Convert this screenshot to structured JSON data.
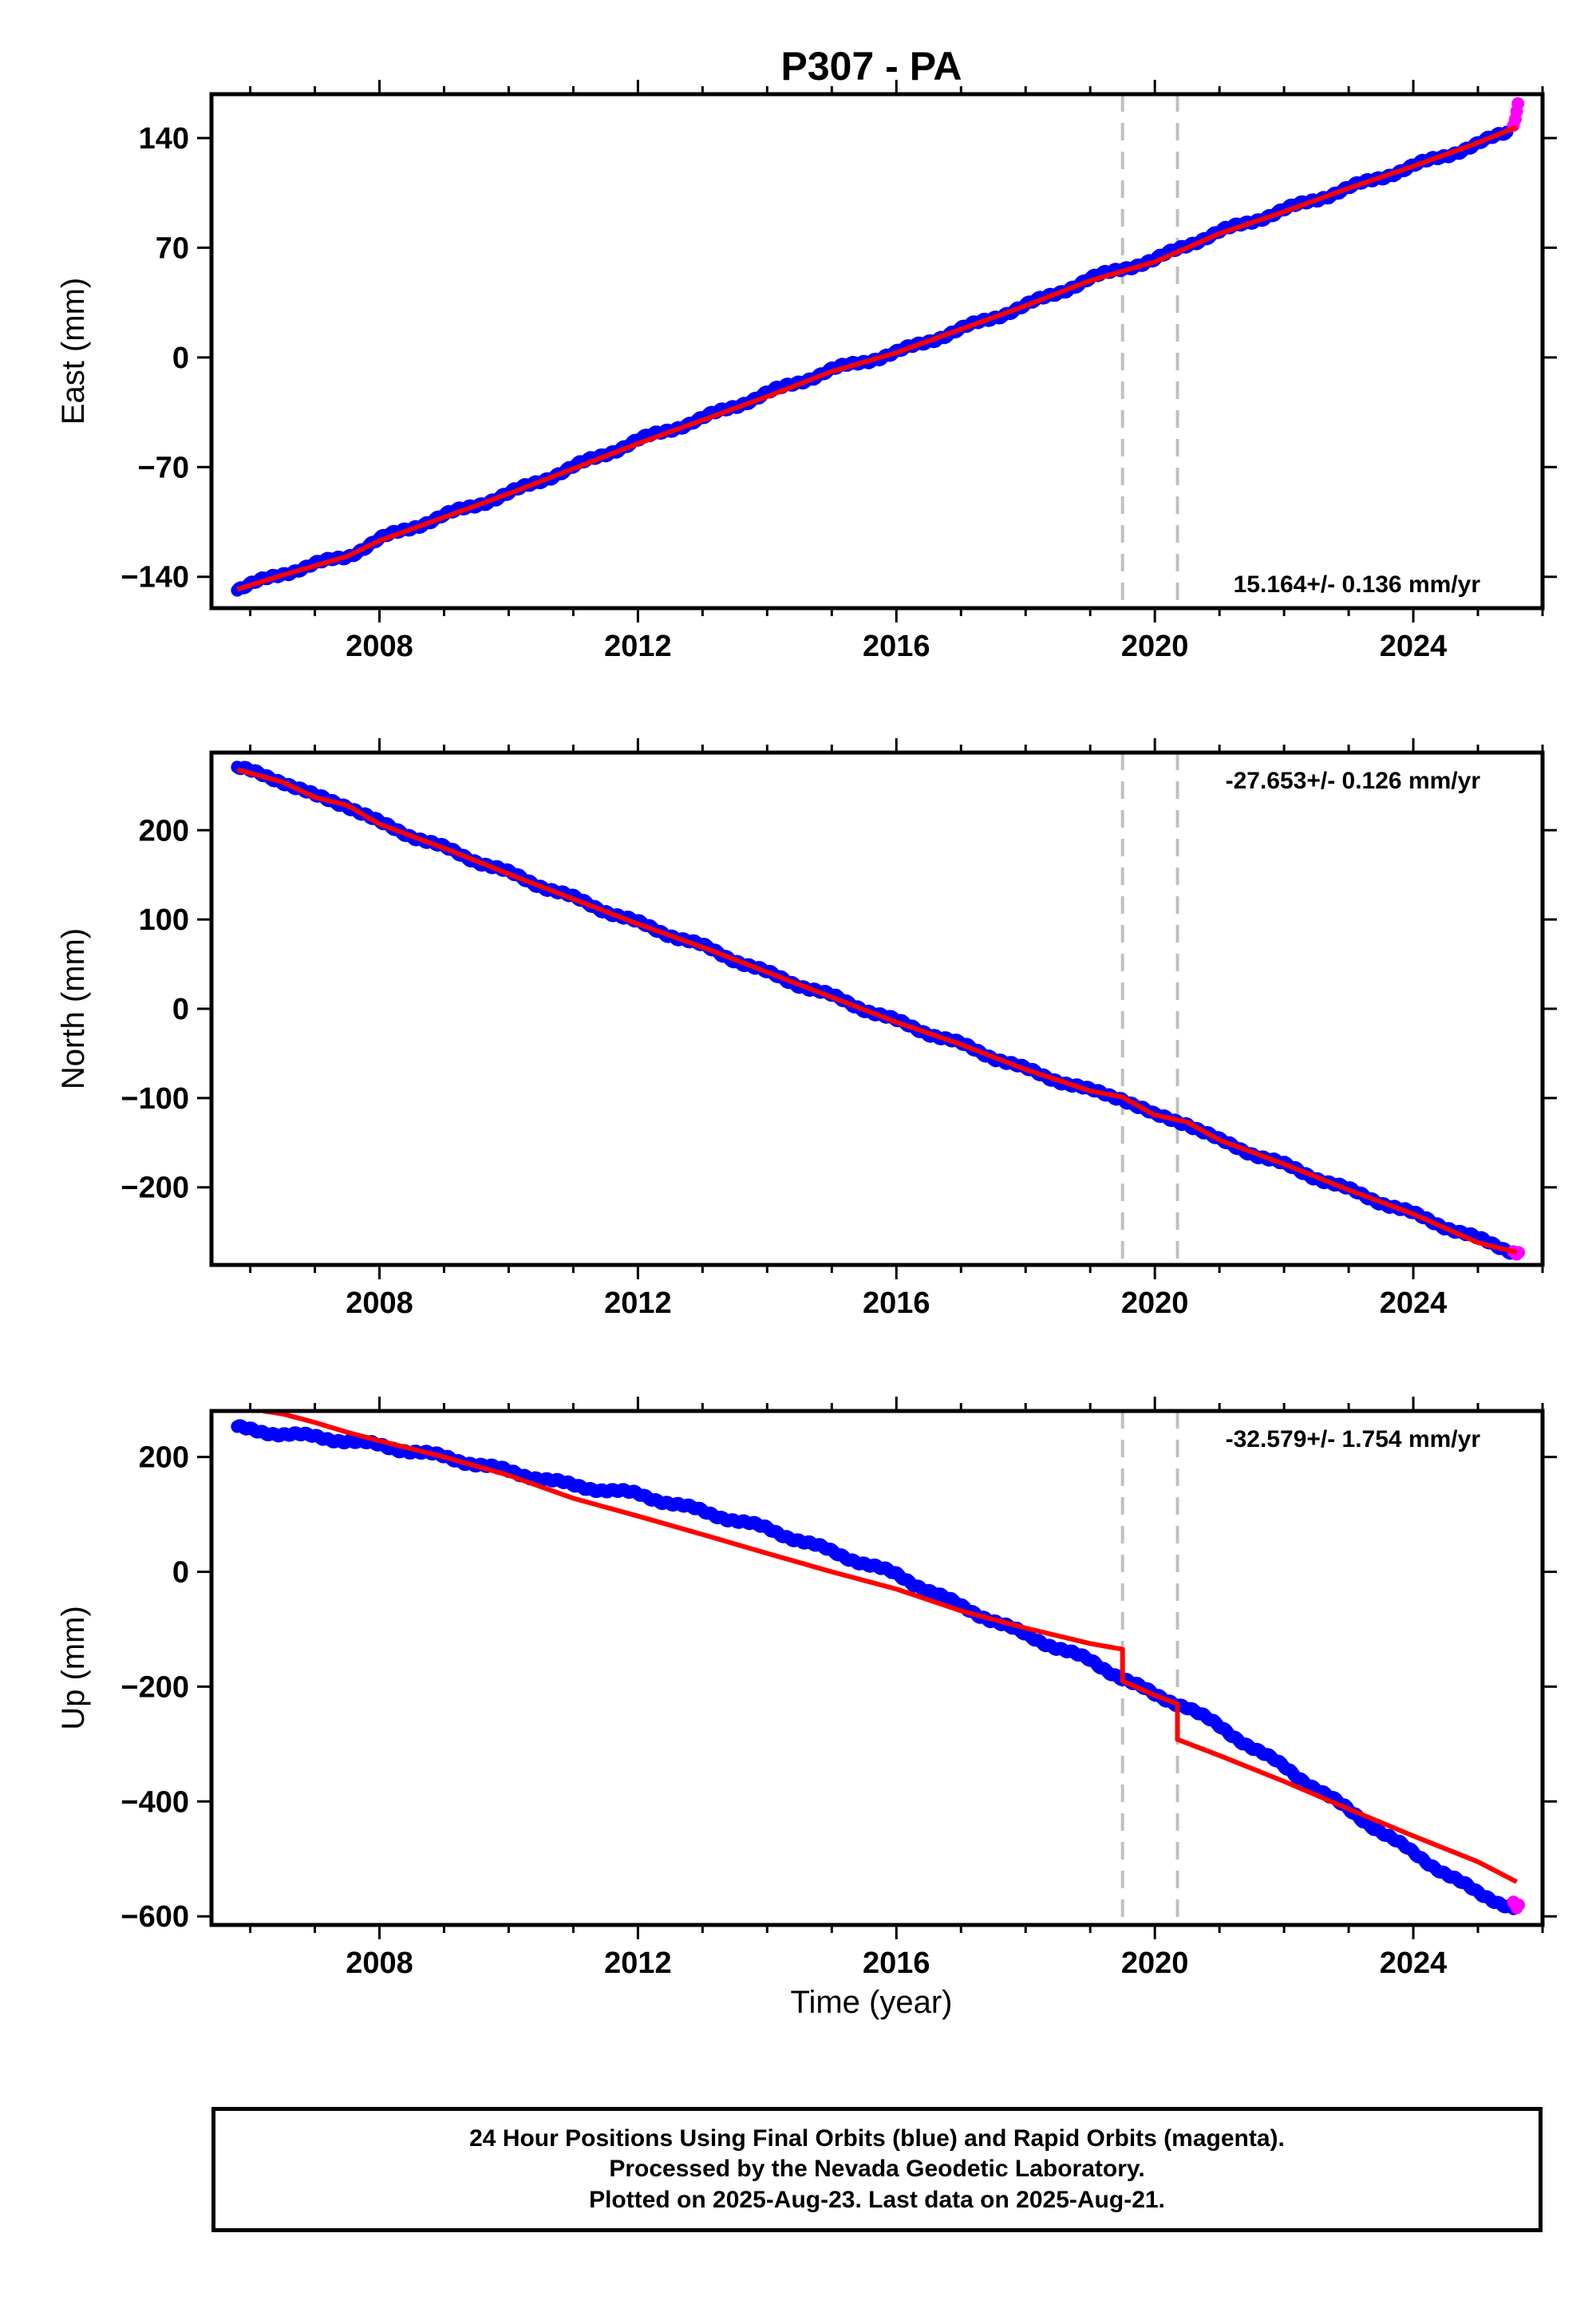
{
  "title": "P307 - PA",
  "xlabel": "Time (year)",
  "colors": {
    "final": "#0000ff",
    "rapid": "#ff00ff",
    "model": "#ff0000",
    "steps": "#c0c0c0"
  },
  "footer": {
    "line1": "24 Hour Positions Using Final Orbits (blue) and Rapid Orbits (magenta).",
    "line2": "Processed by the Nevada Geodetic Laboratory.",
    "line3": "Plotted on 2025-Aug-23. Last data on 2025-Aug-21."
  },
  "chart_data": [
    {
      "type": "scatter",
      "ylabel": "East (mm)",
      "rate": "15.164+/- 0.136 mm/yr",
      "rate_position": "bottom-right",
      "xlim": [
        2005.4,
        2026.0
      ],
      "ylim": [
        -160,
        168
      ],
      "xticks": [
        2008,
        2012,
        2016,
        2020,
        2024
      ],
      "yticks": [
        -140,
        -70,
        0,
        70,
        140
      ],
      "step_epochs": [
        2019.5,
        2020.35
      ],
      "final_series": {
        "x": [
          2005.8,
          2006.5,
          2007.0,
          2007.5,
          2008.0,
          2009.0,
          2010.0,
          2011.0,
          2012.0,
          2013.0,
          2014.0,
          2015.0,
          2016.0,
          2017.0,
          2018.0,
          2019.0,
          2019.5,
          2020.0,
          2020.5,
          2021.0,
          2022.0,
          2023.0,
          2024.0,
          2025.0,
          2025.45
        ],
        "y": [
          -148,
          -138,
          -132,
          -127,
          -116,
          -101,
          -87,
          -70,
          -53,
          -39,
          -23,
          -8,
          3,
          18,
          33,
          50,
          57,
          62,
          72,
          80,
          94,
          108,
          122,
          136,
          144
        ]
      },
      "rapid_series": {
        "x": [
          2025.55,
          2025.58,
          2025.6,
          2025.62
        ],
        "y": [
          148,
          152,
          157,
          162
        ]
      },
      "model_series": {
        "x": [
          2005.8,
          2006.5,
          2007.0,
          2007.5,
          2008.0,
          2009.0,
          2010.0,
          2011.0,
          2012.0,
          2013.0,
          2014.0,
          2015.0,
          2016.0,
          2017.0,
          2018.0,
          2019.0,
          2019.5,
          2020.0,
          2020.5,
          2021.0,
          2022.0,
          2023.0,
          2024.0,
          2025.0,
          2025.6
        ],
        "y": [
          -148,
          -139,
          -133,
          -127,
          -117,
          -102,
          -87,
          -71,
          -55,
          -40,
          -25,
          -9,
          3,
          18,
          33,
          49,
          55,
          61,
          70,
          79,
          93,
          108,
          122,
          137,
          147
        ]
      }
    },
    {
      "type": "scatter",
      "ylabel": "North (mm)",
      "rate": "-27.653+/- 0.126 mm/yr",
      "rate_position": "top-right",
      "xlim": [
        2005.4,
        2026.0
      ],
      "ylim": [
        -287,
        287
      ],
      "xticks": [
        2008,
        2012,
        2016,
        2020,
        2024
      ],
      "yticks": [
        -200,
        -100,
        0,
        100,
        200
      ],
      "step_epochs": [
        2019.5,
        2020.35
      ],
      "final_series": {
        "x": [
          2005.8,
          2006.5,
          2007.0,
          2007.5,
          2008.0,
          2009.0,
          2010.0,
          2011.0,
          2012.0,
          2013.0,
          2014.0,
          2015.0,
          2016.0,
          2017.0,
          2018.0,
          2019.0,
          2019.5,
          2020.0,
          2020.5,
          2021.0,
          2022.0,
          2023.0,
          2024.0,
          2025.0,
          2025.55
        ],
        "y": [
          270,
          255,
          238,
          228,
          208,
          180,
          152,
          124,
          96,
          70,
          40,
          14,
          -14,
          -40,
          -68,
          -92,
          -100,
          -120,
          -128,
          -148,
          -175,
          -203,
          -230,
          -258,
          -272
        ]
      },
      "rapid_series": {
        "x": [
          2025.55,
          2025.6,
          2025.63
        ],
        "y": [
          -272,
          -275,
          -273
        ]
      },
      "model_series": {
        "x": [
          2005.8,
          2006.5,
          2007.0,
          2007.5,
          2008.0,
          2009.0,
          2010.0,
          2011.0,
          2012.0,
          2013.0,
          2014.0,
          2015.0,
          2016.0,
          2017.0,
          2018.0,
          2019.0,
          2019.5,
          2020.0,
          2020.5,
          2021.0,
          2022.0,
          2023.0,
          2024.0,
          2025.0,
          2025.6
        ],
        "y": [
          268,
          254,
          237,
          228,
          207,
          180,
          151,
          123,
          95,
          69,
          41,
          13,
          -15,
          -40,
          -68,
          -92,
          -99,
          -119,
          -127,
          -147,
          -174,
          -203,
          -230,
          -262,
          -273
        ]
      }
    },
    {
      "type": "scatter",
      "ylabel": "Up (mm)",
      "rate": "-32.579+/- 1.754 mm/yr",
      "rate_position": "top-right",
      "xlim": [
        2005.4,
        2026.0
      ],
      "ylim": [
        -615,
        280
      ],
      "xticks": [
        2008,
        2012,
        2016,
        2020,
        2024
      ],
      "yticks": [
        -600,
        -400,
        -200,
        0,
        200
      ],
      "step_epochs": [
        2019.5,
        2020.35
      ],
      "final_series": {
        "x": [
          2005.8,
          2006.5,
          2007.0,
          2007.5,
          2008.0,
          2009.0,
          2010.0,
          2011.0,
          2012.0,
          2013.0,
          2014.0,
          2015.0,
          2016.0,
          2017.0,
          2018.0,
          2019.0,
          2019.5,
          2020.0,
          2020.5,
          2021.0,
          2022.0,
          2023.0,
          2024.0,
          2025.0,
          2025.55
        ],
        "y": [
          250,
          240,
          235,
          228,
          220,
          200,
          175,
          150,
          135,
          105,
          75,
          35,
          -5,
          -60,
          -110,
          -155,
          -185,
          -215,
          -235,
          -270,
          -340,
          -415,
          -490,
          -560,
          -585
        ]
      },
      "rapid_series": {
        "x": [
          2025.55,
          2025.6,
          2025.63
        ],
        "y": [
          -575,
          -585,
          -580
        ]
      },
      "model_series": {
        "x": [
          2006.2,
          2006.5,
          2007.0,
          2007.5,
          2008.0,
          2009.0,
          2010.0,
          2011.0,
          2012.0,
          2013.0,
          2014.0,
          2015.0,
          2016.0,
          2017.0,
          2018.0,
          2019.0,
          2019.5,
          2019.5,
          2020.0,
          2020.35,
          2020.35,
          2021.0,
          2022.0,
          2023.0,
          2024.0,
          2025.0,
          2025.6
        ],
        "y": [
          280,
          275,
          260,
          243,
          228,
          200,
          168,
          128,
          97,
          65,
          32,
          0,
          -30,
          -68,
          -98,
          -125,
          -135,
          -190,
          -215,
          -230,
          -292,
          -320,
          -365,
          -413,
          -460,
          -505,
          -540
        ]
      }
    }
  ]
}
